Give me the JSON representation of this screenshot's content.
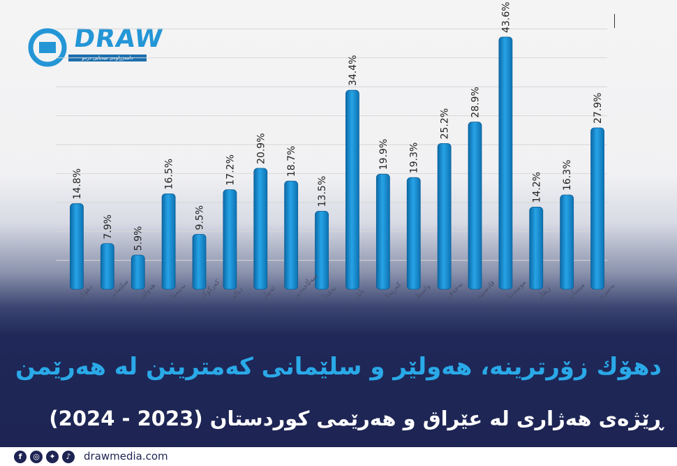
{
  "brand": {
    "logo_text": "DRAW",
    "logo_subtitle": "دامەزراوەی میدیایی درەو",
    "website": "drawmedia.com"
  },
  "title": "دهۆك زۆرترینە، هەولێر و سلێمانی کەمترینن لە هەرێمن",
  "subtitle": "ڕێژەی هەژاری لە عێراق و هەرێمی کوردستان (2023 - 2024)",
  "social_icons": [
    "facebook-icon",
    "instagram-icon",
    "twitter-icon",
    "tiktok-icon"
  ],
  "colors": {
    "bar": "#1e8fd0",
    "title": "#2aa9e8",
    "background_dark": "#1d2453"
  },
  "chart_data": {
    "type": "bar",
    "title": "",
    "xlabel": "",
    "ylabel": "",
    "ylim": [
      0,
      50
    ],
    "grid": true,
    "categories": [
      "دهۆک",
      "سلێمانی",
      "هەولێر",
      "نەینەوا",
      "کەرکوک",
      "دیالە",
      "ئەنبار",
      "سەڵاحەدین",
      "بەغدا",
      "بابل",
      "کەربەلا",
      "واسط",
      "نەجەف",
      "قادسییە",
      "موسەننا",
      "زیقار",
      "میسان",
      "بەسرە"
    ],
    "values": [
      14.8,
      7.9,
      5.9,
      16.5,
      9.5,
      17.2,
      20.9,
      18.7,
      13.5,
      34.4,
      19.9,
      19.3,
      25.2,
      28.9,
      43.6,
      14.2,
      16.3,
      27.9
    ],
    "value_labels": [
      "14.8%",
      "7.9%",
      "5.9%",
      "16.5%",
      "9.5%",
      "17.2%",
      "20.9%",
      "18.7%",
      "13.5%",
      "34.4%",
      "19.9%",
      "19.3%",
      "25.2%",
      "28.9%",
      "43.6%",
      "14.2%",
      "16.3%",
      "27.9%"
    ]
  }
}
